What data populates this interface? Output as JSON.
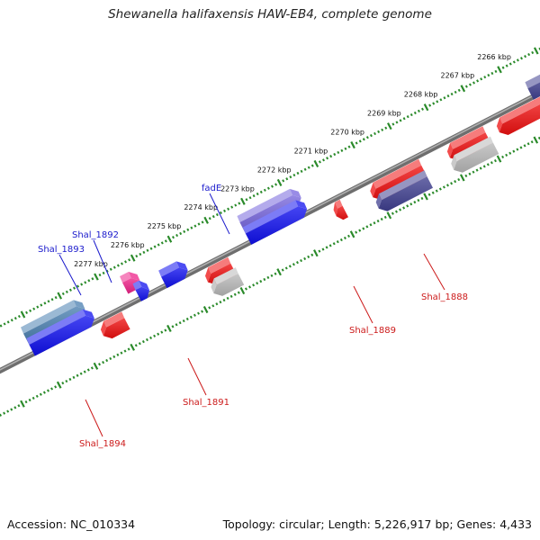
{
  "title": "Shewanella halifaxensis HAW-EB4, complete genome",
  "footer": {
    "accession": "Accession: NC_010334",
    "summary": "Topology: circular; Length: 5,226,917 bp; Genes: 4,433"
  },
  "colors": {
    "backbone": "#808080",
    "tick": "#2a8a2a",
    "label_forward": "#1a1acc",
    "label_reverse": "#cc1a1a",
    "blue": "#1010ee",
    "red": "#ee1010",
    "gray": "#b8b8b8",
    "navy": "#404090",
    "lavender": "#7766dd",
    "pink": "#ee2288",
    "steel": "#4a7fb0"
  },
  "ticks": [
    {
      "kbp": 2266,
      "label": "2266 kbp"
    },
    {
      "kbp": 2267,
      "label": "2267 kbp"
    },
    {
      "kbp": 2268,
      "label": "2268 kbp"
    },
    {
      "kbp": 2269,
      "label": "2269 kbp"
    },
    {
      "kbp": 2270,
      "label": "2270 kbp"
    },
    {
      "kbp": 2271,
      "label": "2271 kbp"
    },
    {
      "kbp": 2272,
      "label": "2272 kbp"
    },
    {
      "kbp": 2273,
      "label": "2273 kbp"
    },
    {
      "kbp": 2274,
      "label": "2274 kbp"
    },
    {
      "kbp": 2275,
      "label": "2275 kbp"
    },
    {
      "kbp": 2276,
      "label": "2276 kbp"
    },
    {
      "kbp": 2277,
      "label": "2277 kbp"
    }
  ],
  "features": [
    {
      "id": "fadE",
      "strand": "forward",
      "lane": "outer",
      "start_kbp": 2271.7,
      "end_kbp": 2273.3,
      "color": "lavender",
      "label": "fadE"
    },
    {
      "id": "fadE_cds",
      "strand": "forward",
      "lane": "inner",
      "start_kbp": 2271.7,
      "end_kbp": 2273.3,
      "color": "blue"
    },
    {
      "id": "Shal_1892",
      "strand": "forward",
      "lane": "inner",
      "start_kbp": 2274.95,
      "end_kbp": 2275.6,
      "color": "blue",
      "label": "Shal_1892"
    },
    {
      "id": "Shal_1893",
      "strand": "forward",
      "lane": "outer",
      "start_kbp": 2276.1,
      "end_kbp": 2276.5,
      "color": "pink",
      "label": "Shal_1893"
    },
    {
      "id": "Shal_1893_cds",
      "strand": "forward",
      "lane": "inner",
      "start_kbp": 2276.0,
      "end_kbp": 2276.3,
      "color": "blue"
    },
    {
      "id": "left_outer",
      "strand": "forward",
      "lane": "outer",
      "start_kbp": 2277.6,
      "end_kbp": 2279.2,
      "color": "steel"
    },
    {
      "id": "left_inner",
      "strand": "forward",
      "lane": "inner",
      "start_kbp": 2277.5,
      "end_kbp": 2279.2,
      "color": "blue"
    },
    {
      "id": "top_right_navy",
      "strand": "forward",
      "lane": "inner",
      "start_kbp": 2264.8,
      "end_kbp": 2265.6,
      "color": "navy"
    },
    {
      "id": "Shal_1888",
      "strand": "reverse",
      "lane": "outer",
      "start_kbp": 2268.75,
      "end_kbp": 2270.15,
      "color": "red",
      "label": "Shal_1888"
    },
    {
      "id": "Shal_1888_gene",
      "strand": "reverse",
      "lane": "inner",
      "start_kbp": 2268.75,
      "end_kbp": 2270.15,
      "color": "navy"
    },
    {
      "id": "Shal_1887",
      "strand": "reverse",
      "lane": "outer",
      "start_kbp": 2267.0,
      "end_kbp": 2268.05,
      "color": "red"
    },
    {
      "id": "Shal_1887_gene",
      "strand": "reverse",
      "lane": "inner",
      "start_kbp": 2266.95,
      "end_kbp": 2268.1,
      "color": "gray"
    },
    {
      "id": "far_right_red",
      "strand": "reverse",
      "lane": "outer",
      "start_kbp": 2265.4,
      "end_kbp": 2266.7,
      "color": "red"
    },
    {
      "id": "Shal_1889",
      "strand": "reverse",
      "lane": "outer",
      "start_kbp": 2270.9,
      "end_kbp": 2271.15,
      "color": "red",
      "label": "Shal_1889"
    },
    {
      "id": "Shal_1891",
      "strand": "reverse",
      "lane": "outer",
      "start_kbp": 2273.95,
      "end_kbp": 2274.65,
      "color": "red",
      "label": "Shal_1891"
    },
    {
      "id": "Shal_1891_gene",
      "strand": "reverse",
      "lane": "inner",
      "start_kbp": 2273.9,
      "end_kbp": 2274.65,
      "color": "gray"
    },
    {
      "id": "Shal_1894",
      "strand": "reverse",
      "lane": "outer",
      "start_kbp": 2276.85,
      "end_kbp": 2277.5,
      "color": "red",
      "label": "Shal_1894"
    }
  ]
}
